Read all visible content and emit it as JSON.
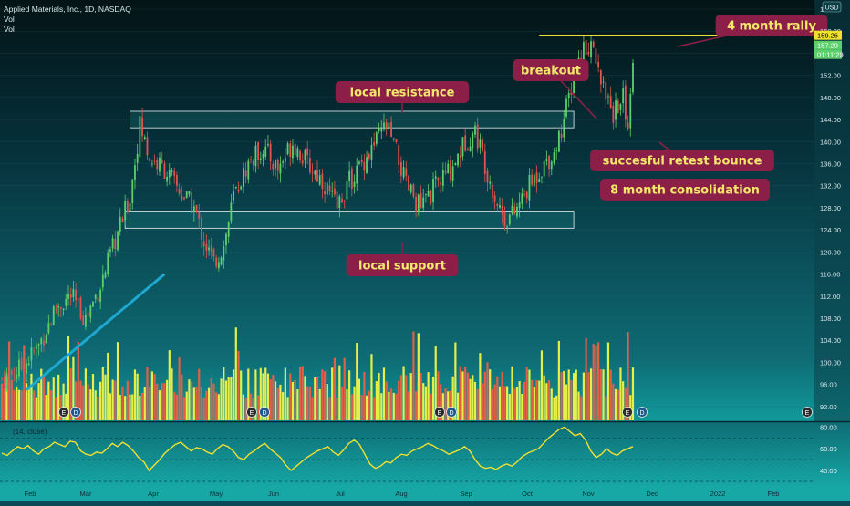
{
  "header": {
    "symbol_line": "Applied Materials, Inc., 1D, NASDAQ",
    "vol_labels": [
      "Vol",
      "Vol"
    ],
    "currency": "USD"
  },
  "price_badges": [
    {
      "value": "159.26",
      "color": "#f0e030",
      "text_color": "#000000"
    },
    {
      "value": "157.29",
      "color": "#5dd06c",
      "text_color": "#ffffff"
    },
    {
      "value": "01:11:29",
      "color": "#5dd06c",
      "text_color": "#ffffff"
    }
  ],
  "rsi_label": "(14, close)",
  "rsi_axis_ticks": [
    "80.00",
    "60.00",
    "40.00"
  ],
  "annotations": [
    {
      "text": "4 month rally"
    },
    {
      "text": "breakout"
    },
    {
      "text": "local resistance"
    },
    {
      "text": "succesful retest bounce"
    },
    {
      "text": "8 month consolidation"
    },
    {
      "text": "local support"
    }
  ],
  "event_markers": [
    "E",
    "D",
    "E",
    "D",
    "E",
    "D",
    "E",
    "D",
    "E"
  ],
  "colors": {
    "up": "#5dd06c",
    "down": "#e0534f",
    "vol_up": "#e6ee4a",
    "vol_down": "#e0604a",
    "annotation_bg": "#8c1f48",
    "annotation_text": "#f3e86b",
    "rsi_line": "#f0e030",
    "zone_fill": "#1f8a8a",
    "trend_line": "#1ea8d0",
    "rally_line": "#f0e030"
  },
  "chart_data": [
    {
      "type": "candlestick",
      "title": "Applied Materials, Inc., 1D, NASDAQ",
      "y_unit": "USD",
      "ylim": [
        90,
        164
      ],
      "y_ticks": [
        164,
        160,
        156,
        152,
        148,
        144,
        140,
        136,
        132,
        128,
        124,
        120,
        116,
        112,
        108,
        104,
        100,
        96,
        92
      ],
      "y_tick_labels": [
        "164.00",
        "160.00",
        "156.00",
        "152.00",
        "148.00",
        "144.00",
        "140.00",
        "136.00",
        "132.00",
        "128.00",
        "124.00",
        "120.00",
        "116.00",
        "112.00",
        "108.00",
        "104.00",
        "100.00",
        "96.00",
        "92.00"
      ],
      "x_labels": [
        "Feb",
        "Mar",
        "Apr",
        "May",
        "Jun",
        "Jul",
        "Aug",
        "Sep",
        "Oct",
        "Nov",
        "Dec",
        "2022",
        "Feb"
      ],
      "close_path": [
        {
          "t": 0,
          "p": 97
        },
        {
          "t": 8,
          "p": 99
        },
        {
          "t": 15,
          "p": 103
        },
        {
          "t": 22,
          "p": 110
        },
        {
          "t": 28,
          "p": 112
        },
        {
          "t": 34,
          "p": 108
        },
        {
          "t": 40,
          "p": 114
        },
        {
          "t": 46,
          "p": 122
        },
        {
          "t": 52,
          "p": 130
        },
        {
          "t": 56,
          "p": 143
        },
        {
          "t": 60,
          "p": 137
        },
        {
          "t": 66,
          "p": 135
        },
        {
          "t": 72,
          "p": 131
        },
        {
          "t": 78,
          "p": 128
        },
        {
          "t": 82,
          "p": 122
        },
        {
          "t": 86,
          "p": 118
        },
        {
          "t": 90,
          "p": 121
        },
        {
          "t": 94,
          "p": 130
        },
        {
          "t": 100,
          "p": 136
        },
        {
          "t": 106,
          "p": 139
        },
        {
          "t": 112,
          "p": 135
        },
        {
          "t": 118,
          "p": 140
        },
        {
          "t": 124,
          "p": 136
        },
        {
          "t": 130,
          "p": 133
        },
        {
          "t": 136,
          "p": 128
        },
        {
          "t": 140,
          "p": 132
        },
        {
          "t": 146,
          "p": 136
        },
        {
          "t": 152,
          "p": 140
        },
        {
          "t": 156,
          "p": 143
        },
        {
          "t": 160,
          "p": 138
        },
        {
          "t": 164,
          "p": 132
        },
        {
          "t": 170,
          "p": 128
        },
        {
          "t": 176,
          "p": 132
        },
        {
          "t": 182,
          "p": 135
        },
        {
          "t": 188,
          "p": 140
        },
        {
          "t": 192,
          "p": 142
        },
        {
          "t": 196,
          "p": 136
        },
        {
          "t": 200,
          "p": 130
        },
        {
          "t": 204,
          "p": 126
        },
        {
          "t": 208,
          "p": 127
        },
        {
          "t": 214,
          "p": 132
        },
        {
          "t": 220,
          "p": 136
        },
        {
          "t": 224,
          "p": 138
        },
        {
          "t": 228,
          "p": 144
        },
        {
          "t": 232,
          "p": 152
        },
        {
          "t": 236,
          "p": 157
        },
        {
          "t": 240,
          "p": 158
        },
        {
          "t": 244,
          "p": 150
        },
        {
          "t": 248,
          "p": 145
        },
        {
          "t": 252,
          "p": 148
        },
        {
          "t": 254,
          "p": 143
        },
        {
          "t": 256,
          "p": 155
        }
      ],
      "volume_level": "relative",
      "overlays": {
        "resistance_zone": [
          142.5,
          145.5
        ],
        "support_zone": [
          124.3,
          127.4
        ],
        "rally_level": 159.26,
        "uptrend_line": [
          {
            "t": 10,
            "p": 95
          },
          {
            "t": 66,
            "p": 116
          }
        ]
      }
    },
    {
      "type": "line",
      "title": "(14, close)",
      "ylim": [
        30,
        82
      ],
      "y_ticks": [
        80,
        60,
        40
      ],
      "reference_lines": [
        70,
        50,
        30
      ],
      "values": [
        56,
        54,
        58,
        62,
        60,
        63,
        58,
        55,
        60,
        62,
        66,
        64,
        62,
        67,
        66,
        58,
        55,
        54,
        57,
        56,
        60,
        65,
        62,
        66,
        63,
        58,
        52,
        48,
        40,
        45,
        50,
        56,
        60,
        64,
        66,
        62,
        58,
        61,
        60,
        57,
        55,
        60,
        64,
        62,
        58,
        52,
        50,
        55,
        58,
        62,
        65,
        60,
        56,
        52,
        45,
        40,
        44,
        48,
        52,
        55,
        58,
        60,
        62,
        57,
        54,
        59,
        65,
        68,
        64,
        55,
        46,
        42,
        44,
        48,
        47,
        52,
        55,
        54,
        58,
        60,
        62,
        65,
        63,
        60,
        58,
        55,
        57,
        59,
        62,
        58,
        50,
        44,
        42,
        43,
        41,
        44,
        46,
        44,
        48,
        53,
        56,
        58,
        60,
        65,
        70,
        74,
        78,
        80,
        76,
        72,
        74,
        68,
        58,
        52,
        55,
        60,
        56,
        54,
        58,
        60,
        62
      ]
    }
  ]
}
